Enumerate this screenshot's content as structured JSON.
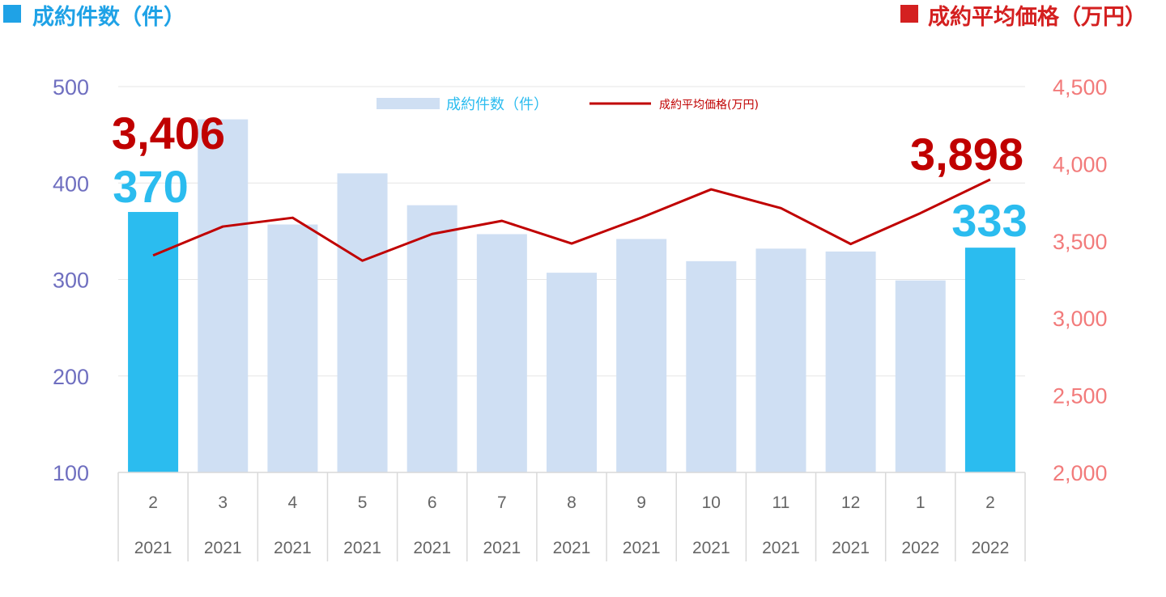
{
  "header": {
    "left_title": "成約件数（件）",
    "right_title": "成約平均価格（万円）"
  },
  "legend": {
    "bar_label": "成約件数（件）",
    "line_label": "成約平均価格(万円)"
  },
  "colors": {
    "bar": "#cfdff3",
    "bar_highlight": "#2bbcef",
    "line": "#c00000",
    "left_axis": "#6f6fc0",
    "right_axis": "#f27b7b",
    "header_left_square": "#1fa2e6",
    "header_left_text": "#1fa2e6",
    "header_right_square": "#d42020",
    "header_right_text": "#d42020",
    "big_line_label": "#c00000",
    "big_bar_label": "#2bbcef",
    "grid": "#e6e6e6",
    "category_text": "#666666"
  },
  "chart_data": {
    "type": "bar",
    "categories": [
      {
        "month": "2",
        "year": "2021"
      },
      {
        "month": "3",
        "year": "2021"
      },
      {
        "month": "4",
        "year": "2021"
      },
      {
        "month": "5",
        "year": "2021"
      },
      {
        "month": "6",
        "year": "2021"
      },
      {
        "month": "7",
        "year": "2021"
      },
      {
        "month": "8",
        "year": "2021"
      },
      {
        "month": "9",
        "year": "2021"
      },
      {
        "month": "10",
        "year": "2021"
      },
      {
        "month": "11",
        "year": "2021"
      },
      {
        "month": "12",
        "year": "2021"
      },
      {
        "month": "1",
        "year": "2022"
      },
      {
        "month": "2",
        "year": "2022"
      }
    ],
    "series": [
      {
        "name": "成約件数（件）",
        "type": "bar",
        "axis": "left",
        "values": [
          370,
          466,
          357,
          410,
          377,
          347,
          307,
          342,
          319,
          332,
          329,
          299,
          333
        ],
        "highlight": [
          true,
          false,
          false,
          false,
          false,
          false,
          false,
          false,
          false,
          false,
          false,
          false,
          true
        ]
      },
      {
        "name": "成約平均価格(万円)",
        "type": "line",
        "axis": "right",
        "values": [
          3406,
          3593,
          3650,
          3372,
          3545,
          3630,
          3483,
          3651,
          3834,
          3712,
          3480,
          3680,
          3898
        ]
      }
    ],
    "y_left": {
      "min": 100,
      "max": 500,
      "ticks": [
        "100",
        "200",
        "300",
        "400",
        "500"
      ]
    },
    "y_right": {
      "min": 2000,
      "max": 4500,
      "ticks": [
        "2,000",
        "2,500",
        "3,000",
        "3,500",
        "4,000",
        "4,500"
      ]
    },
    "annotations": {
      "first_bar_label": "370",
      "first_line_label": "3,406",
      "last_bar_label": "333",
      "last_line_label": "3,898"
    },
    "grid": true,
    "legend_position": "top-center"
  }
}
